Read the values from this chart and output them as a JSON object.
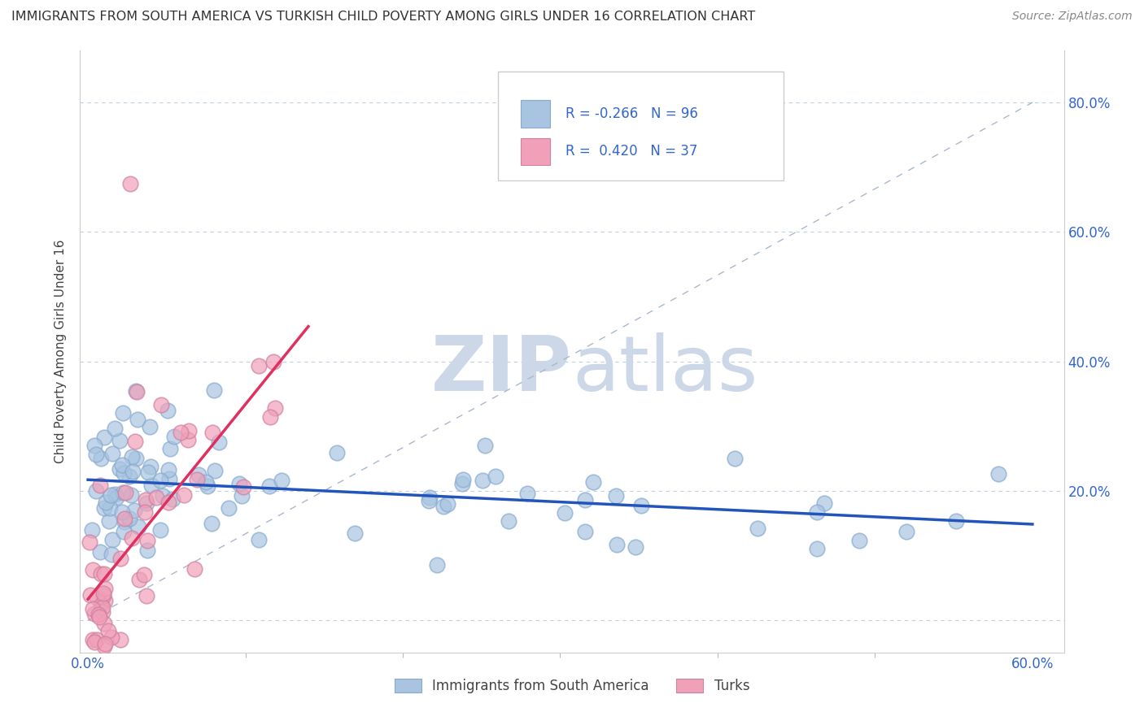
{
  "title": "IMMIGRANTS FROM SOUTH AMERICA VS TURKISH CHILD POVERTY AMONG GIRLS UNDER 16 CORRELATION CHART",
  "source": "Source: ZipAtlas.com",
  "ylabel": "Child Poverty Among Girls Under 16",
  "xlim": [
    -0.005,
    0.62
  ],
  "ylim": [
    -0.05,
    0.88
  ],
  "xtick_vals": [
    0.0,
    0.6
  ],
  "xticklabels": [
    "0.0%",
    "60.0%"
  ],
  "ytick_vals": [
    0.0,
    0.2,
    0.4,
    0.6,
    0.8
  ],
  "yticklabels_right": [
    "",
    "20.0%",
    "40.0%",
    "60.0%",
    "80.0%"
  ],
  "legend_labels": [
    "Immigrants from South America",
    "Turks"
  ],
  "legend_R": [
    "-0.266",
    "0.420"
  ],
  "legend_N": [
    "96",
    "37"
  ],
  "blue_color": "#a8c4e0",
  "pink_color": "#f0a0b8",
  "blue_line_color": "#2255bb",
  "pink_line_color": "#e03060",
  "R_text_color": "#3366cc",
  "watermark_color": "#ccd8e8",
  "background_color": "#ffffff",
  "grid_color": "#c0cfe0",
  "marker_size": 180,
  "marker_linewidth": 1.2,
  "marker_alpha": 0.7
}
